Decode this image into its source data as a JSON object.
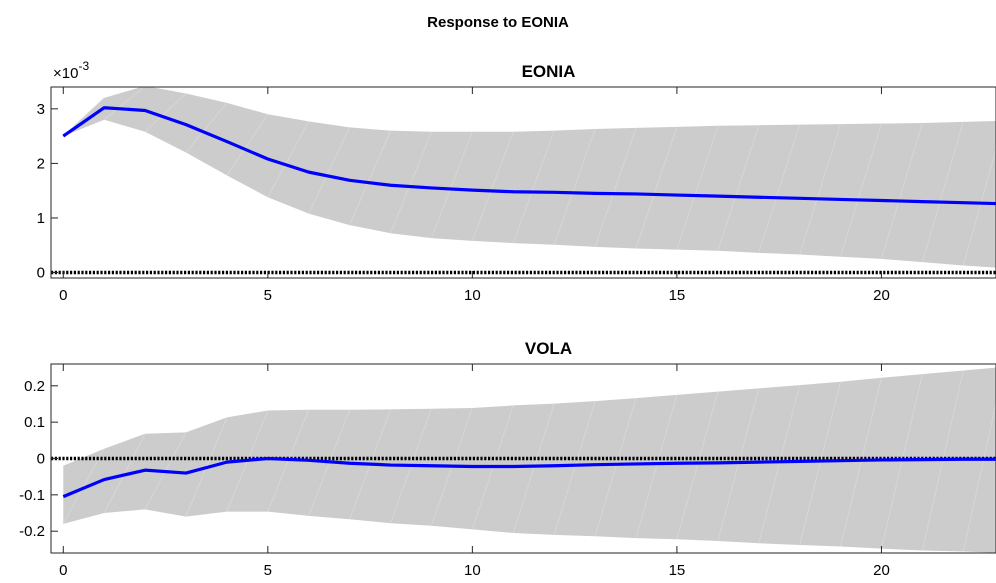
{
  "figure": {
    "title": "Response to EONIA"
  },
  "chart_data": [
    {
      "type": "line",
      "title": "EONIA",
      "scale_label": "×10",
      "scale_exponent": "-3",
      "xlim": [
        -0.3,
        22.8
      ],
      "ylim": [
        -0.0001,
        0.0034
      ],
      "xticks": [
        0,
        5,
        10,
        15,
        20
      ],
      "yticks": [
        0,
        0.001,
        0.002,
        0.003
      ],
      "ytick_labels": [
        "0",
        "1",
        "2",
        "3"
      ],
      "x": [
        0,
        1,
        2,
        3,
        4,
        5,
        6,
        7,
        8,
        9,
        10,
        11,
        12,
        13,
        14,
        15,
        16,
        17,
        18,
        19,
        20,
        21,
        22,
        23
      ],
      "series": [
        {
          "values": [
            0.0025,
            0.00302,
            0.00297,
            0.00271,
            0.0024,
            0.00208,
            0.00184,
            0.00169,
            0.0016,
            0.00155,
            0.00151,
            0.00148,
            0.00147,
            0.00145,
            0.00144,
            0.00142,
            0.0014,
            0.00138,
            0.00136,
            0.00134,
            0.00132,
            0.0013,
            0.00128,
            0.00126
          ],
          "color": "#0000ff"
        }
      ],
      "band": {
        "upper": [
          0.0025,
          0.0032,
          0.00342,
          0.00328,
          0.00311,
          0.0029,
          0.00277,
          0.00266,
          0.0026,
          0.00258,
          0.00258,
          0.00258,
          0.0026,
          0.00263,
          0.00265,
          0.00267,
          0.00269,
          0.0027,
          0.00271,
          0.00272,
          0.00273,
          0.00274,
          0.00276,
          0.00278
        ],
        "lower": [
          0.0025,
          0.0028,
          0.00258,
          0.0022,
          0.00178,
          0.00138,
          0.00108,
          0.00087,
          0.00072,
          0.00063,
          0.00058,
          0.00054,
          0.00051,
          0.00047,
          0.00044,
          0.00042,
          0.0004,
          0.00036,
          0.00033,
          0.00029,
          0.00025,
          0.00019,
          0.00013,
          8e-05
        ],
        "color": "#cccccc"
      },
      "zero_line": 0
    },
    {
      "type": "line",
      "title": "VOLA",
      "xlim": [
        -0.3,
        22.8
      ],
      "ylim": [
        -0.26,
        0.26
      ],
      "xticks": [
        0,
        5,
        10,
        15,
        20
      ],
      "xtick_labels": [
        "0",
        "5",
        "10",
        "15",
        "20"
      ],
      "yticks": [
        -0.2,
        -0.1,
        0,
        0.1,
        0.2
      ],
      "ytick_labels": [
        "-0.2",
        "-0.1",
        "0",
        "0.1",
        "0.2"
      ],
      "x": [
        0,
        1,
        2,
        3,
        4,
        5,
        6,
        7,
        8,
        9,
        10,
        11,
        12,
        13,
        14,
        15,
        16,
        17,
        18,
        19,
        20,
        21,
        22,
        23
      ],
      "series": [
        {
          "values": [
            -0.105,
            -0.058,
            -0.032,
            -0.04,
            -0.01,
            0,
            -0.005,
            -0.013,
            -0.018,
            -0.02,
            -0.022,
            -0.022,
            -0.02,
            -0.017,
            -0.015,
            -0.013,
            -0.012,
            -0.01,
            -0.008,
            -0.006,
            -0.004,
            -0.003,
            -0.002,
            -0.002
          ],
          "color": "#0000ff"
        }
      ],
      "band": {
        "upper": [
          -0.02,
          0.027,
          0.068,
          0.072,
          0.113,
          0.132,
          0.134,
          0.134,
          0.135,
          0.137,
          0.139,
          0.146,
          0.151,
          0.158,
          0.166,
          0.175,
          0.184,
          0.193,
          0.202,
          0.211,
          0.222,
          0.232,
          0.242,
          0.252
        ],
        "lower": [
          -0.18,
          -0.15,
          -0.14,
          -0.16,
          -0.146,
          -0.146,
          -0.158,
          -0.167,
          -0.178,
          -0.185,
          -0.195,
          -0.205,
          -0.21,
          -0.214,
          -0.219,
          -0.222,
          -0.227,
          -0.233,
          -0.238,
          -0.242,
          -0.248,
          -0.253,
          -0.256,
          -0.26
        ],
        "color": "#cccccc"
      },
      "zero_line": 0
    }
  ]
}
